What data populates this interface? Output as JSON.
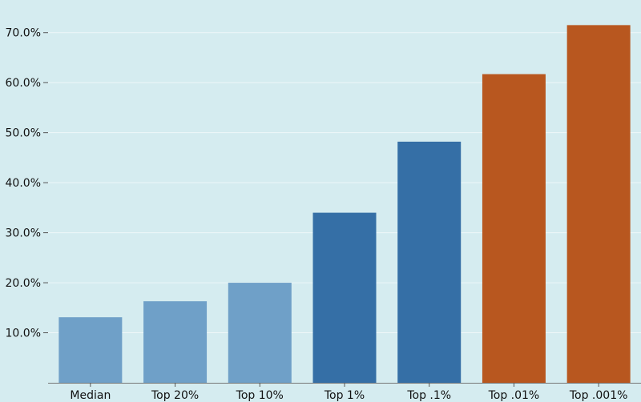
{
  "chart_data": {
    "type": "bar",
    "categories": [
      "Median",
      "Top 20%",
      "Top 10%",
      "Top 1%",
      "Top .1%",
      "Top .01%",
      "Top .001%"
    ],
    "values": [
      13.1,
      16.3,
      20.0,
      34.0,
      48.2,
      61.7,
      71.5
    ],
    "bar_colors": [
      "#6fa0c8",
      "#6fa0c8",
      "#6fa0c8",
      "#356fa6",
      "#356fa6",
      "#b8571f",
      "#b8571f"
    ],
    "ylim": [
      0,
      75
    ],
    "yticks": [
      10,
      20,
      30,
      40,
      50,
      60,
      70
    ],
    "ytick_labels": [
      "10.0%",
      "20.0%",
      "30.0%",
      "40.0%",
      "50.0%",
      "60.0%",
      "70.0%"
    ],
    "title": "",
    "xlabel": "",
    "ylabel": "",
    "grid": true,
    "background": "#d5ecf0",
    "gridline_color": "#eef7f9"
  }
}
